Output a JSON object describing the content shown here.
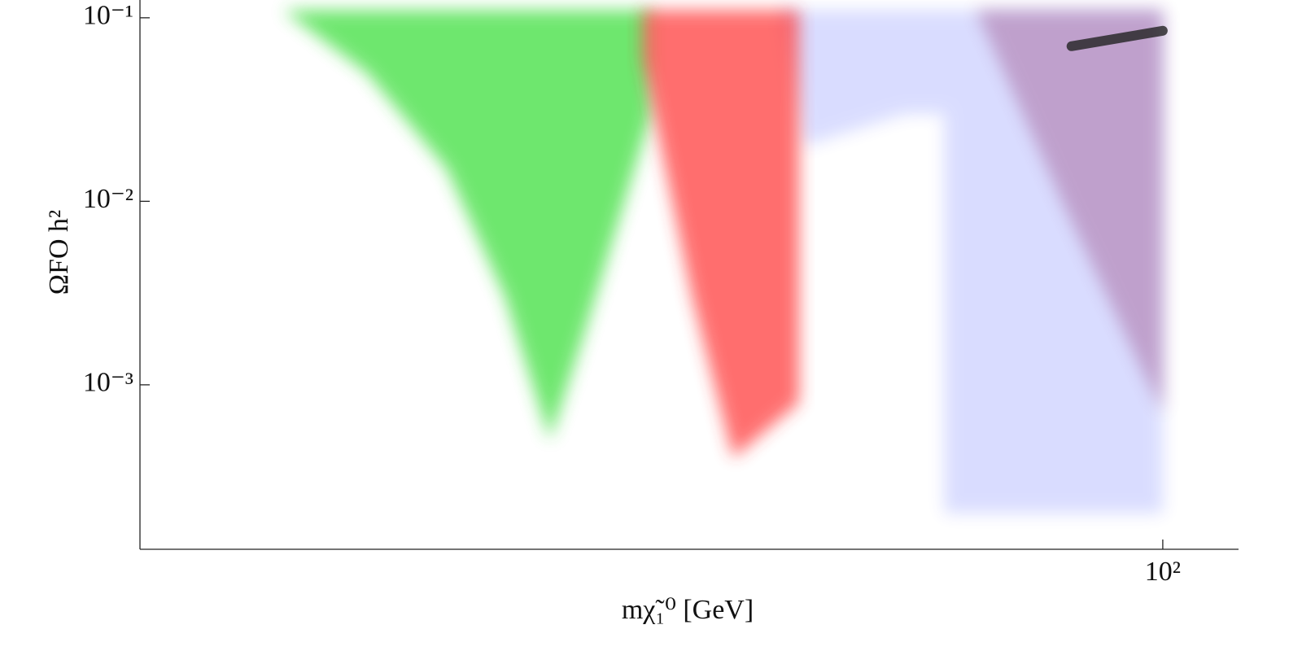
{
  "chart_data": {
    "type": "scatter",
    "x_label": "mχ̃₁⁰ [GeV]",
    "y_label": "ΩFO h²",
    "xscale": "log",
    "yscale": "log",
    "xlim": [
      19.2,
      113
    ],
    "ylim": [
      0.000127,
      0.125
    ],
    "xticks": [
      {
        "value": 100,
        "label": "10²"
      }
    ],
    "yticks": [
      {
        "value": 0.1,
        "label": "10⁻¹"
      },
      {
        "value": 0.01,
        "label": "10⁻²"
      },
      {
        "value": 0.001,
        "label": "10⁻³"
      }
    ],
    "series": [
      {
        "color": "#33dd33",
        "x": [
          24.2,
          27.7,
          31.5,
          34.6,
          37.2,
          39.4,
          41.6,
          43.8,
          43.8
        ],
        "y": [
          0.11,
          0.05,
          0.015,
          0.003,
          0.0005,
          0.002,
          0.008,
          0.03,
          0.11
        ]
      },
      {
        "color": "#3344ff",
        "x": [
          54,
          56,
          66,
          70.3,
          70.3,
          100,
          100
        ],
        "y": [
          0.11,
          0.02,
          0.03,
          0.03,
          0.0002,
          0.0002,
          0.11
        ]
      },
      {
        "color": "#ff3030",
        "x": [
          43.2,
          43.2,
          46.8,
          50,
          55.6,
          55.6
        ],
        "y": [
          0.11,
          0.06,
          0.003,
          0.0004,
          0.0008,
          0.11
        ]
      },
      {
        "color": "#a05890",
        "x": [
          74,
          85,
          100,
          100
        ],
        "y": [
          0.11,
          0.01,
          0.0007,
          0.11
        ]
      },
      {
        "color": "#222222",
        "x": [
          86.3,
          100
        ],
        "y": [
          0.07,
          0.085
        ]
      }
    ]
  }
}
